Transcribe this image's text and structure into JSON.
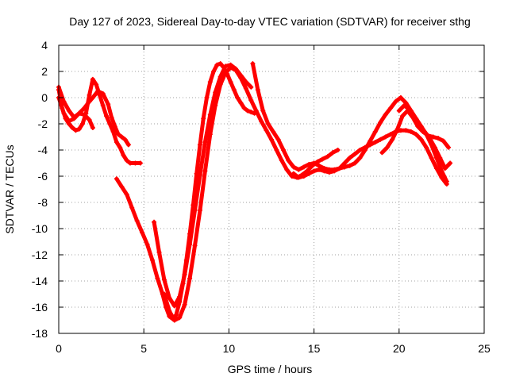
{
  "chart_data": {
    "type": "scatter",
    "title": "Day 127 of 2023, Sidereal Day-to-day VTEC variation (SDTVAR) for receiver sthg",
    "xlabel": "GPS time / hours",
    "ylabel": "SDTVAR / TECUs",
    "xlim": [
      0,
      25
    ],
    "ylim": [
      -18,
      4
    ],
    "xticks": [
      0,
      5,
      10,
      15,
      20,
      25
    ],
    "yticks": [
      -18,
      -16,
      -14,
      -12,
      -10,
      -8,
      -6,
      -4,
      -2,
      0,
      2,
      4
    ],
    "grid": true,
    "marker": "+",
    "color": "#ff0000",
    "series": [
      {
        "name": "track-1",
        "x": [
          0.0,
          0.2,
          0.4,
          0.6,
          0.8,
          1.0,
          1.2,
          1.4,
          1.6,
          1.8,
          2.0,
          2.2,
          2.4,
          2.6,
          2.8,
          3.0,
          3.2,
          3.4,
          3.6,
          3.8,
          4.0,
          4.2,
          4.5,
          4.8
        ],
        "y": [
          0.6,
          -0.8,
          -1.6,
          -2.0,
          -2.3,
          -2.5,
          -2.4,
          -2.0,
          -1.2,
          0.2,
          1.4,
          1.0,
          0.2,
          -0.6,
          -1.4,
          -2.0,
          -2.6,
          -3.4,
          -3.8,
          -4.4,
          -4.8,
          -5.0,
          -5.0,
          -5.0
        ]
      },
      {
        "name": "track-2",
        "x": [
          0.0,
          0.3,
          0.6,
          0.9,
          1.2,
          1.5,
          1.8,
          2.0,
          2.3,
          2.6,
          2.9,
          3.1,
          3.3,
          3.5,
          3.7,
          3.9,
          4.1
        ],
        "y": [
          0.8,
          -0.3,
          -1.0,
          -1.5,
          -1.2,
          -0.8,
          -0.3,
          0.0,
          0.5,
          0.3,
          -0.5,
          -1.5,
          -2.2,
          -2.8,
          -3.0,
          -3.2,
          -3.6
        ]
      },
      {
        "name": "track-3",
        "x": [
          0.0,
          0.3,
          0.6,
          0.9,
          1.2,
          1.5,
          1.8,
          2.0
        ],
        "y": [
          0.0,
          -1.2,
          -1.8,
          -1.6,
          -1.2,
          -1.3,
          -1.7,
          -2.3
        ]
      },
      {
        "name": "track-4",
        "x": [
          3.4,
          3.7,
          4.0,
          4.3,
          4.6,
          4.9,
          5.2,
          5.5,
          5.8,
          6.1,
          6.3,
          6.5,
          6.7,
          6.9,
          7.1,
          7.3,
          7.5,
          7.7,
          7.9,
          8.1,
          8.3,
          8.5,
          8.7,
          8.9,
          9.1,
          9.3,
          9.5,
          9.7,
          9.9,
          10.1,
          10.3,
          10.5,
          10.7,
          10.9,
          11.1,
          11.3,
          11.5
        ],
        "y": [
          -6.2,
          -6.8,
          -7.4,
          -8.4,
          -9.4,
          -10.3,
          -11.2,
          -12.4,
          -13.8,
          -15.0,
          -16.0,
          -16.7,
          -16.9,
          -16.6,
          -15.6,
          -14.2,
          -12.4,
          -10.4,
          -8.2,
          -5.8,
          -3.6,
          -1.6,
          0.0,
          1.2,
          2.0,
          2.5,
          2.6,
          2.3,
          1.8,
          1.2,
          0.6,
          0.0,
          -0.4,
          -0.8,
          -1.0,
          -1.1,
          -1.2
        ]
      },
      {
        "name": "track-5",
        "x": [
          5.6,
          5.9,
          6.2,
          6.5,
          6.8,
          7.1,
          7.4,
          7.7,
          8.0,
          8.3,
          8.6,
          8.9,
          9.2,
          9.5,
          9.8,
          10.1,
          10.4,
          10.7,
          11.0,
          11.3
        ],
        "y": [
          -9.5,
          -11.8,
          -13.9,
          -15.3,
          -15.9,
          -15.2,
          -13.5,
          -11.2,
          -8.6,
          -5.9,
          -3.4,
          -1.3,
          0.4,
          1.6,
          2.4,
          2.5,
          2.2,
          1.7,
          1.2,
          0.8
        ]
      },
      {
        "name": "track-6",
        "x": [
          6.2,
          6.5,
          6.8,
          7.1,
          7.4,
          7.7,
          8.0,
          8.3,
          8.6,
          8.9,
          9.2,
          9.5,
          9.8,
          10.1,
          10.4,
          10.7,
          11.0,
          11.3,
          11.6,
          11.9,
          12.2,
          12.5,
          12.8,
          13.1,
          13.4,
          13.7,
          14.0,
          14.3,
          14.6,
          14.9,
          15.2,
          15.5,
          15.8,
          16.1,
          16.4
        ],
        "y": [
          -15.0,
          -16.3,
          -17.0,
          -16.8,
          -15.8,
          -13.8,
          -11.3,
          -8.6,
          -5.6,
          -2.8,
          -0.6,
          1.0,
          1.9,
          2.3,
          2.1,
          1.5,
          0.7,
          -0.2,
          -1.0,
          -1.8,
          -2.5,
          -3.2,
          -4.0,
          -4.8,
          -5.5,
          -6.0,
          -6.1,
          -5.9,
          -5.6,
          -5.2,
          -4.9,
          -4.7,
          -4.5,
          -4.2,
          -4.0
        ]
      },
      {
        "name": "track-7",
        "x": [
          11.4,
          11.7,
          12.0,
          12.3,
          12.6,
          12.9,
          13.2,
          13.5,
          13.8,
          14.1,
          14.4,
          14.7,
          15.0,
          15.3,
          15.6,
          15.9,
          16.2,
          16.5,
          16.8,
          17.1,
          17.4,
          17.7,
          18.0,
          18.3,
          18.6,
          18.9,
          19.2,
          19.5,
          19.8,
          20.1,
          20.4,
          20.7,
          21.0,
          21.3,
          21.6,
          21.9,
          22.2,
          22.5,
          22.8
        ],
        "y": [
          2.6,
          0.6,
          -1.0,
          -2.0,
          -2.6,
          -3.2,
          -4.0,
          -4.8,
          -5.3,
          -5.5,
          -5.3,
          -5.1,
          -5.0,
          -5.2,
          -5.4,
          -5.5,
          -5.5,
          -5.4,
          -5.3,
          -5.2,
          -5.0,
          -4.6,
          -4.0,
          -3.3,
          -2.6,
          -1.9,
          -1.3,
          -0.8,
          -0.3,
          0.0,
          -0.4,
          -1.0,
          -1.6,
          -2.2,
          -2.8,
          -3.6,
          -4.6,
          -5.6,
          -6.4
        ]
      },
      {
        "name": "track-8",
        "x": [
          13.8,
          14.1,
          14.4,
          14.7,
          15.0,
          15.3,
          15.6,
          15.9,
          16.2,
          16.5,
          16.8,
          17.1,
          17.4,
          17.7,
          18.0,
          18.3,
          18.6,
          18.9,
          19.2,
          19.5,
          19.8,
          20.1,
          20.4,
          20.7,
          21.0,
          21.3,
          21.6,
          21.9,
          22.2,
          22.5,
          22.8
        ],
        "y": [
          -5.8,
          -6.1,
          -6.0,
          -5.8,
          -5.6,
          -5.5,
          -5.6,
          -5.7,
          -5.6,
          -5.4,
          -5.0,
          -4.6,
          -4.3,
          -4.0,
          -3.8,
          -3.6,
          -3.4,
          -3.2,
          -3.0,
          -2.8,
          -2.6,
          -2.5,
          -2.5,
          -2.6,
          -2.8,
          -3.2,
          -3.8,
          -4.6,
          -5.4,
          -6.1,
          -6.6
        ]
      },
      {
        "name": "track-9",
        "x": [
          19.0,
          19.3,
          19.6,
          19.9,
          20.2,
          20.5,
          20.8,
          21.1,
          21.4,
          21.7,
          22.0,
          22.3,
          22.6,
          22.9
        ],
        "y": [
          -4.2,
          -3.8,
          -3.2,
          -2.4,
          -1.4,
          -1.0,
          -1.5,
          -2.2,
          -2.6,
          -2.9,
          -3.0,
          -3.1,
          -3.3,
          -3.8
        ]
      },
      {
        "name": "track-10",
        "x": [
          20.0,
          20.3,
          20.6,
          20.9,
          21.2,
          21.5,
          21.8,
          22.1,
          22.4,
          22.7,
          23.0
        ],
        "y": [
          -1.0,
          -0.6,
          -0.9,
          -1.5,
          -2.1,
          -2.6,
          -3.1,
          -3.8,
          -4.6,
          -5.4,
          -5.0
        ]
      }
    ]
  }
}
